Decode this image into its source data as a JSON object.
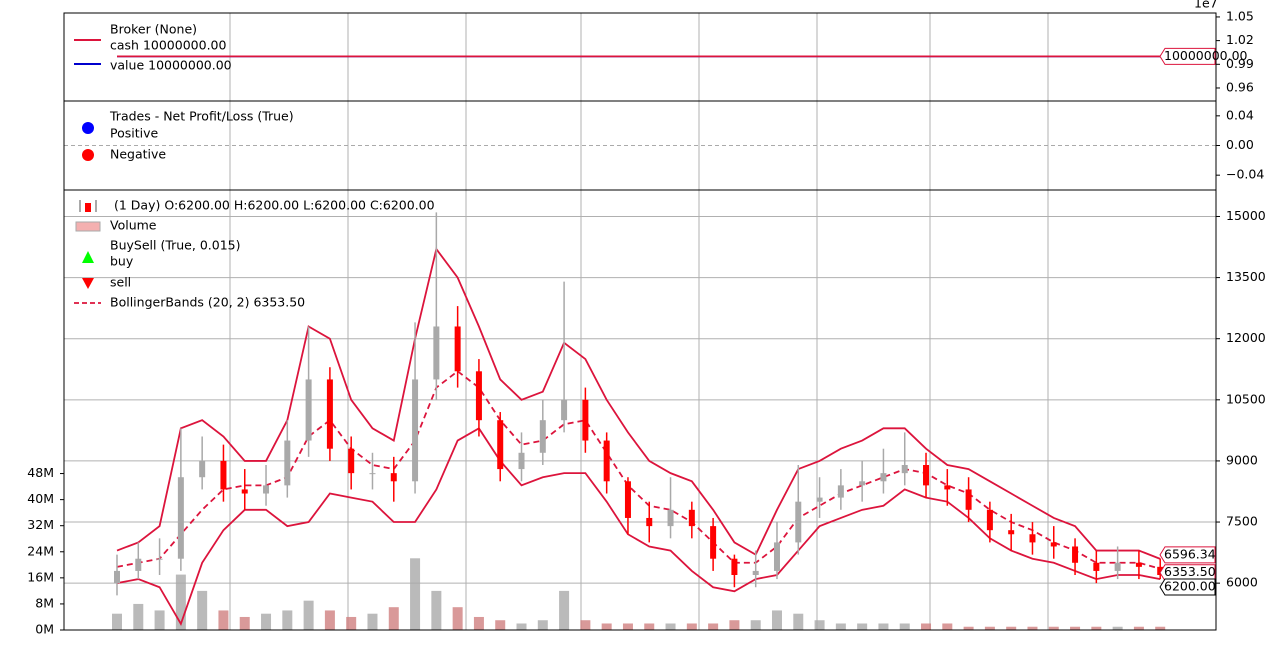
{
  "chart_data": [
    {
      "type": "line",
      "title": "Broker (None)",
      "series": [
        {
          "name": "cash 10000000.00",
          "color": "#dc143c",
          "values": [
            1,
            1
          ]
        },
        {
          "name": "value 10000000.00",
          "color": "#0000cd",
          "values": [
            1,
            1
          ]
        }
      ],
      "ylim": [
        0.9435,
        1.055
      ],
      "yticks": [
        0.96,
        0.99,
        1.02,
        1.05
      ],
      "offset_label": "1e7",
      "last_value": {
        "value": 1,
        "label": "10000000.00"
      },
      "grid": true
    },
    {
      "type": "scatter",
      "title": "Trades - Net Profit/Loss (True)",
      "series": [
        {
          "name": "Positive",
          "color": "#0000ff",
          "values": []
        },
        {
          "name": "Negative",
          "color": "#ff0000",
          "values": []
        }
      ],
      "ylim": [
        -0.06,
        0.06
      ],
      "yticks": [
        {
          "value": -0.04,
          "label": "−0.04"
        },
        {
          "value": 0,
          "label": "0.00"
        },
        {
          "value": 0.04,
          "label": "0.04"
        }
      ],
      "grid": true
    },
    {
      "type": "candlestick",
      "title": "(1 Day) O:6200.00 H:6200.00 L:6200.00 C:6200.00",
      "up_color": "#a9a9a9",
      "down_color": "#ff0000",
      "open": [
        6000,
        6300,
        6600,
        6600,
        8600,
        9000,
        8300,
        8200,
        8400,
        9500,
        11000,
        9300,
        8700,
        8700,
        8500,
        11000,
        12300,
        11200,
        10000,
        8800,
        9200,
        10000,
        10500,
        9500,
        8500,
        7600,
        7400,
        7800,
        7400,
        6600,
        6200,
        6300,
        7000,
        8000,
        8100,
        8400,
        8500,
        8700,
        8900,
        8400,
        8300,
        7800,
        7300,
        7200,
        7000,
        6900,
        6500,
        6300,
        6500,
        6400
      ],
      "high": [
        6700,
        7000,
        7100,
        9800,
        9600,
        9400,
        8800,
        8900,
        10000,
        12300,
        11300,
        9600,
        9200,
        9100,
        12400,
        15100,
        12800,
        11500,
        10200,
        9700,
        10500,
        13400,
        10800,
        9700,
        8600,
        8000,
        8600,
        8000,
        7600,
        6700,
        6800,
        7500,
        8900,
        8600,
        8800,
        9000,
        9300,
        9700,
        9200,
        8800,
        8600,
        8000,
        7700,
        7500,
        7400,
        7100,
        6800,
        6900,
        6800,
        6600
      ],
      "low": [
        5700,
        6100,
        6200,
        6300,
        8300,
        8000,
        7800,
        7900,
        8100,
        9100,
        9000,
        8300,
        8300,
        8000,
        8200,
        10500,
        10800,
        9600,
        8500,
        8500,
        8900,
        9700,
        9200,
        8200,
        7200,
        7000,
        7100,
        7100,
        6300,
        5900,
        5900,
        6100,
        6700,
        7600,
        7800,
        8000,
        8200,
        8400,
        8100,
        7900,
        7500,
        7000,
        6800,
        6700,
        6600,
        6200,
        6000,
        6100,
        6100,
        6100
      ],
      "close": [
        6300,
        6600,
        6600,
        8600,
        9000,
        8300,
        8200,
        8400,
        9500,
        11000,
        9300,
        8700,
        8700,
        8500,
        11000,
        12300,
        11200,
        10000,
        8800,
        9200,
        10000,
        10500,
        9500,
        8500,
        7600,
        7400,
        7800,
        7400,
        6600,
        6200,
        6300,
        7000,
        8000,
        8100,
        8400,
        8500,
        8700,
        8900,
        8400,
        8300,
        7800,
        7300,
        7200,
        7000,
        6900,
        6500,
        6300,
        6500,
        6400,
        6200
      ],
      "close_label": "6200.00",
      "ylim": [
        4850,
        15650
      ],
      "yticks": [
        6000,
        7500,
        9000,
        10500,
        12000,
        13500,
        15000
      ],
      "grid": true,
      "volume": {
        "name": "Volume",
        "color": "#d08080",
        "values": [
          5000000,
          8000000,
          6000000,
          17000000,
          12000000,
          6000000,
          4000000,
          5000000,
          6000000,
          9000000,
          6000000,
          4000000,
          5000000,
          7000000,
          22000000,
          12000000,
          7000000,
          4000000,
          3000000,
          2000000,
          3000000,
          12000000,
          3000000,
          2000000,
          2000000,
          2000000,
          2000000,
          2000000,
          2000000,
          3000000,
          3000000,
          6000000,
          5000000,
          3000000,
          2000000,
          2000000,
          2000000,
          2000000,
          2000000,
          2000000,
          1000000,
          1000000,
          1000000,
          1000000,
          1000000,
          1000000,
          1000000,
          1000000,
          1000000,
          1000000
        ],
        "ylim": [
          0,
          135000000
        ],
        "yticks": [
          {
            "value": 0,
            "label": "0M"
          },
          {
            "value": 8000000,
            "label": "8M"
          },
          {
            "value": 16000000,
            "label": "16M"
          },
          {
            "value": 24000000,
            "label": "24M"
          },
          {
            "value": 32000000,
            "label": "32M"
          },
          {
            "value": 40000000,
            "label": "40M"
          },
          {
            "value": 48000000,
            "label": "48M"
          }
        ]
      },
      "buysell": {
        "title": "BuySell (True, 0.015)",
        "series": [
          {
            "name": "buy",
            "color": "#00ff00"
          },
          {
            "name": "sell",
            "color": "#ff0000"
          }
        ]
      },
      "bands": {
        "title": "BollingerBands (20, 2) 6353.50",
        "color": "#dc143c",
        "top": [
          6800,
          7000,
          7400,
          9800,
          10000,
          9600,
          9000,
          9000,
          10000,
          12300,
          12000,
          10500,
          9800,
          9500,
          12000,
          14200,
          13500,
          12300,
          11000,
          10500,
          10700,
          11900,
          11500,
          10500,
          9700,
          9000,
          8700,
          8500,
          7800,
          7000,
          6700,
          7800,
          8800,
          9000,
          9300,
          9500,
          9800,
          9800,
          9300,
          8900,
          8800,
          8500,
          8200,
          7900,
          7600,
          7400,
          6800,
          6800,
          6800,
          6596.34
        ],
        "mid": [
          6400,
          6500,
          6600,
          7200,
          7800,
          8300,
          8400,
          8400,
          8600,
          9600,
          10000,
          9300,
          8900,
          8800,
          9500,
          10800,
          11200,
          10800,
          10000,
          9400,
          9500,
          9900,
          10000,
          9200,
          8400,
          7900,
          7800,
          7500,
          7000,
          6500,
          6500,
          6900,
          7600,
          7900,
          8200,
          8400,
          8600,
          8800,
          8700,
          8400,
          8200,
          7800,
          7500,
          7300,
          7000,
          6800,
          6500,
          6500,
          6500,
          6353.5
        ],
        "bot": [
          6000,
          6100,
          5900,
          5000,
          6500,
          7300,
          7800,
          7800,
          7400,
          7500,
          8200,
          8100,
          8000,
          7500,
          7500,
          8300,
          9500,
          9800,
          9000,
          8400,
          8600,
          8700,
          8700,
          8000,
          7200,
          6900,
          6800,
          6300,
          5900,
          5800,
          6100,
          6200,
          6800,
          7400,
          7600,
          7800,
          7900,
          8300,
          8100,
          8000,
          7600,
          7100,
          6800,
          6600,
          6500,
          6300,
          6100,
          6200,
          6200,
          6100
        ],
        "top_label": "6596.34",
        "mid_label": "6353.50"
      }
    }
  ]
}
